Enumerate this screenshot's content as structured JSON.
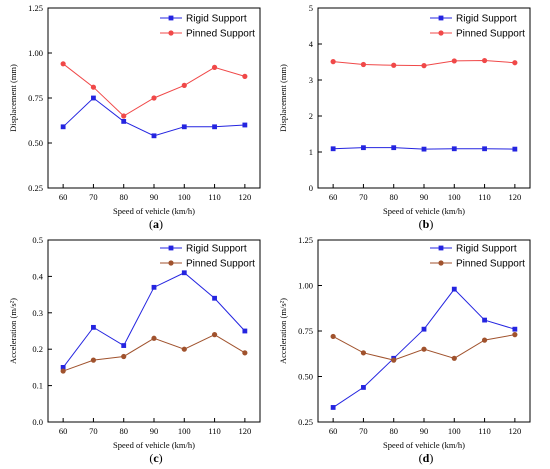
{
  "chart_data": [
    {
      "type": "line",
      "panel": "(a)",
      "caption_letter": "a",
      "title": "",
      "xlabel": "Speed of vehicle (km/h)",
      "ylabel": "Displacement (mm)",
      "x": [
        60,
        70,
        80,
        90,
        100,
        110,
        120
      ],
      "xlim": [
        55,
        125
      ],
      "xticks": [
        60,
        70,
        80,
        90,
        100,
        110,
        120
      ],
      "ylim": [
        0.25,
        1.25
      ],
      "yticks": [
        "0.25",
        "0.50",
        "0.75",
        "1.00",
        "1.25"
      ],
      "grid": false,
      "legend": "top-right",
      "series": [
        {
          "name": "Rigid Support",
          "marker": "square",
          "color": "#2424e0",
          "values": [
            0.59,
            0.75,
            0.62,
            0.54,
            0.59,
            0.59,
            0.6
          ]
        },
        {
          "name": "Pinned Support",
          "marker": "circle",
          "color": "#f04848",
          "values": [
            0.94,
            0.81,
            0.65,
            0.75,
            0.82,
            0.92,
            0.87
          ]
        }
      ]
    },
    {
      "type": "line",
      "panel": "(b)",
      "caption_letter": "b",
      "title": "",
      "xlabel": "Speed of vehicle (km/h)",
      "ylabel": "Displacement (mm)",
      "x": [
        60,
        70,
        80,
        90,
        100,
        110,
        120
      ],
      "xlim": [
        55,
        125
      ],
      "xticks": [
        60,
        70,
        80,
        90,
        100,
        110,
        120
      ],
      "ylim": [
        0,
        5
      ],
      "yticks": [
        "0",
        "1",
        "2",
        "3",
        "4",
        "5"
      ],
      "grid": false,
      "legend": "top-right",
      "series": [
        {
          "name": "Rigid Support",
          "marker": "square",
          "color": "#2424e0",
          "values": [
            1.09,
            1.12,
            1.12,
            1.08,
            1.09,
            1.09,
            1.08
          ]
        },
        {
          "name": "Pinned Support",
          "marker": "circle",
          "color": "#f04848",
          "values": [
            3.51,
            3.43,
            3.41,
            3.4,
            3.53,
            3.54,
            3.48
          ]
        }
      ]
    },
    {
      "type": "line",
      "panel": "(c)",
      "caption_letter": "c",
      "title": "",
      "xlabel": "Speed of vehicle (km/h)",
      "ylabel": "Acceleration (m/s²)",
      "x": [
        60,
        70,
        80,
        90,
        100,
        110,
        120
      ],
      "xlim": [
        55,
        125
      ],
      "xticks": [
        60,
        70,
        80,
        90,
        100,
        110,
        120
      ],
      "ylim": [
        0.0,
        0.5
      ],
      "yticks": [
        "0.0",
        "0.1",
        "0.2",
        "0.3",
        "0.4",
        "0.5"
      ],
      "grid": false,
      "legend": "top-right",
      "series": [
        {
          "name": "Rigid Support",
          "marker": "square",
          "color": "#2424e0",
          "values": [
            0.15,
            0.26,
            0.21,
            0.37,
            0.41,
            0.34,
            0.25
          ]
        },
        {
          "name": "Pinned Support",
          "marker": "circle",
          "color": "#a0522d",
          "values": [
            0.14,
            0.17,
            0.18,
            0.23,
            0.2,
            0.24,
            0.19
          ]
        }
      ]
    },
    {
      "type": "line",
      "panel": "(d)",
      "caption_letter": "d",
      "title": "",
      "xlabel": "Speed of vehicle (km/h)",
      "ylabel": "Acceleration (m/s²)",
      "x": [
        60,
        70,
        80,
        90,
        100,
        110,
        120
      ],
      "xlim": [
        55,
        125
      ],
      "xticks": [
        60,
        70,
        80,
        90,
        100,
        110,
        120
      ],
      "ylim": [
        0.25,
        1.25
      ],
      "yticks": [
        "0.25",
        "0.50",
        "0.75",
        "1.00",
        "1.25"
      ],
      "grid": false,
      "legend": "top-right",
      "series": [
        {
          "name": "Rigid Support",
          "marker": "square",
          "color": "#2424e0",
          "values": [
            0.33,
            0.44,
            0.6,
            0.76,
            0.98,
            0.81,
            0.76
          ]
        },
        {
          "name": "Pinned Support",
          "marker": "circle",
          "color": "#a0522d",
          "values": [
            0.72,
            0.63,
            0.59,
            0.65,
            0.6,
            0.7,
            0.73
          ]
        }
      ]
    }
  ]
}
